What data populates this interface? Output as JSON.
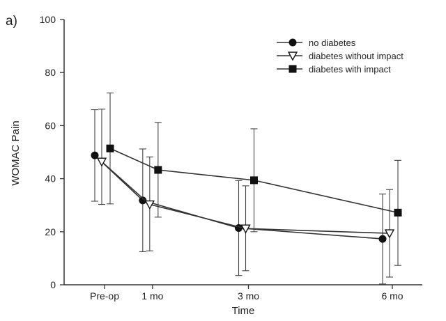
{
  "panel_label": "a)",
  "chart_data": {
    "type": "line",
    "title": "",
    "xlabel": "Time",
    "ylabel": "WOMAC Pain",
    "ylim": [
      0,
      100
    ],
    "yticks": [
      0,
      20,
      40,
      60,
      80,
      100
    ],
    "categories": [
      "Pre-op",
      "1 mo",
      "3 mo",
      "6 mo"
    ],
    "category_times_months": [
      0,
      1,
      3,
      6
    ],
    "grid": false,
    "legend_position": "top-right",
    "series": [
      {
        "name": "no diabetes",
        "marker": "circle-filled",
        "values": [
          48.8,
          31.8,
          21.4,
          17.3
        ],
        "error_low": [
          31.5,
          12.5,
          3.5,
          0.3
        ],
        "error_high": [
          66.0,
          51.2,
          39.3,
          34.2
        ]
      },
      {
        "name": "diabetes without impact",
        "marker": "triangle-down-open",
        "values": [
          46.4,
          30.3,
          21.2,
          19.4
        ],
        "error_low": [
          30.3,
          12.8,
          5.3,
          2.9
        ],
        "error_high": [
          66.2,
          48.2,
          37.3,
          35.9
        ]
      },
      {
        "name": "diabetes with impact",
        "marker": "square-filled",
        "values": [
          51.4,
          43.3,
          39.4,
          27.2
        ],
        "error_low": [
          30.5,
          25.5,
          20.0,
          7.3
        ],
        "error_high": [
          72.3,
          61.2,
          58.8,
          46.9
        ]
      }
    ]
  }
}
